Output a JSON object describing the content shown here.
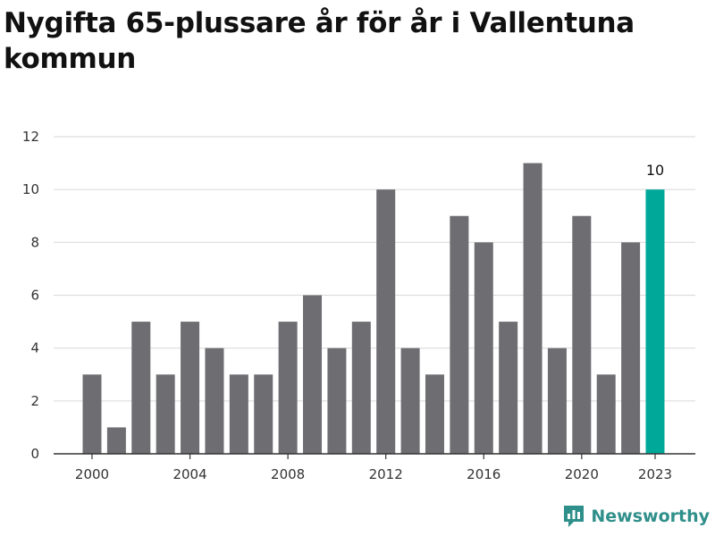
{
  "title": "Nygifta 65-plussare år för år i Vallentuna kommun",
  "brand": {
    "name": "Newsworthy",
    "icon": "newsworthy-logo-icon",
    "color": "#2f8f8a"
  },
  "colors": {
    "bar": "#6e6d72",
    "highlight": "#00a89a",
    "grid": "#dddddd",
    "axis": "#333333"
  },
  "chart_data": {
    "type": "bar",
    "title": "Nygifta 65-plussare år för år i Vallentuna kommun",
    "xlabel": "",
    "ylabel": "",
    "categories": [
      2000,
      2001,
      2002,
      2003,
      2004,
      2005,
      2006,
      2007,
      2008,
      2009,
      2010,
      2011,
      2012,
      2013,
      2014,
      2015,
      2016,
      2017,
      2018,
      2019,
      2020,
      2021,
      2022,
      2023
    ],
    "values": [
      3,
      1,
      5,
      3,
      5,
      4,
      3,
      3,
      5,
      6,
      4,
      5,
      10,
      4,
      3,
      9,
      8,
      5,
      11,
      4,
      9,
      3,
      8,
      10
    ],
    "x_tick_labels": [
      "2000",
      "2004",
      "2008",
      "2012",
      "2016",
      "2020",
      "2023"
    ],
    "y_ticks": [
      0,
      2,
      4,
      6,
      8,
      10,
      12
    ],
    "ylim": [
      0,
      12
    ],
    "grid": "horizontal",
    "highlight": {
      "category": 2023,
      "label": "10"
    }
  }
}
